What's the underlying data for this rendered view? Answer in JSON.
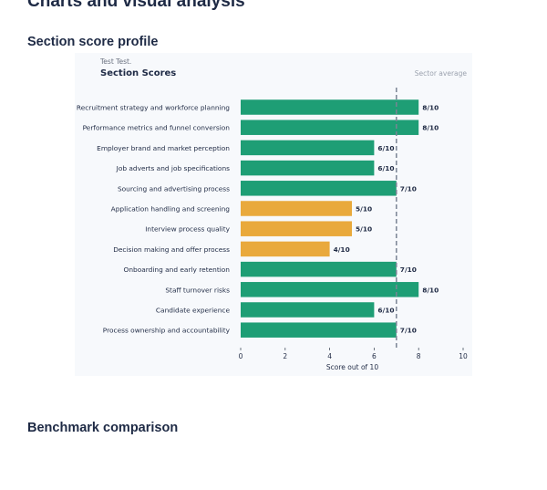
{
  "page": {
    "heading": "Charts and visual analysis",
    "profile_heading": "Section score profile",
    "benchmark_heading": "Benchmark comparison"
  },
  "chart_data": {
    "type": "bar",
    "orientation": "horizontal",
    "subtitle": "Test Test.",
    "title": "Section Scores",
    "reference_line_label": "Sector average",
    "reference_value": 7,
    "categories": [
      "Recruitment strategy and workforce planning",
      "Performance metrics and funnel conversion",
      "Employer brand and market perception",
      "Job adverts and job specifications",
      "Sourcing and advertising process",
      "Application handling and screening",
      "Interview process quality",
      "Decision making and offer process",
      "Onboarding and early retention",
      "Staff turnover risks",
      "Candidate experience",
      "Process ownership and accountability"
    ],
    "values": [
      8,
      8,
      6,
      6,
      7,
      5,
      5,
      4,
      7,
      8,
      6,
      7
    ],
    "value_labels": [
      "8/10",
      "8/10",
      "6/10",
      "6/10",
      "7/10",
      "5/10",
      "5/10",
      "4/10",
      "7/10",
      "8/10",
      "6/10",
      "7/10"
    ],
    "xlabel": "Score out of 10",
    "xlim": [
      0,
      10
    ],
    "xticks": [
      "0",
      "2",
      "4",
      "6",
      "8",
      "10"
    ],
    "colors": {
      "high": "#1e9e75",
      "low": "#e9a93c",
      "reference": "#7a8494"
    },
    "grid": false,
    "legend": "none"
  }
}
